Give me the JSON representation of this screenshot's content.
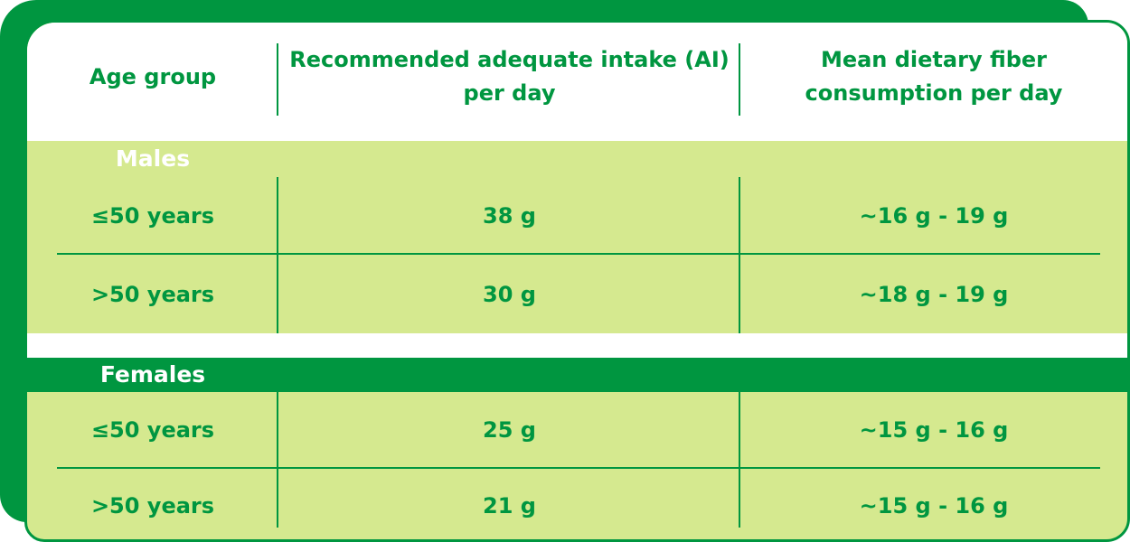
{
  "colors": {
    "primary": "#009640",
    "row_fill": "#d5e98f",
    "header_fill": "#ffffff"
  },
  "header": [
    "Age group",
    "Recommended adequate intake (AI) per day",
    "Mean dietary fiber consumption per day"
  ],
  "groups": [
    {
      "label": "Males",
      "rows": [
        {
          "age": "≤50 years",
          "ai": "38 g",
          "mean": "~16 g - 19 g"
        },
        {
          "age": ">50 years",
          "ai": "30 g",
          "mean": "~18 g - 19 g"
        }
      ]
    },
    {
      "label": "Females",
      "rows": [
        {
          "age": "≤50 years",
          "ai": "25 g",
          "mean": "~15 g - 16 g"
        },
        {
          "age": ">50 years",
          "ai": "21 g",
          "mean": "~15 g - 16 g"
        }
      ]
    }
  ]
}
